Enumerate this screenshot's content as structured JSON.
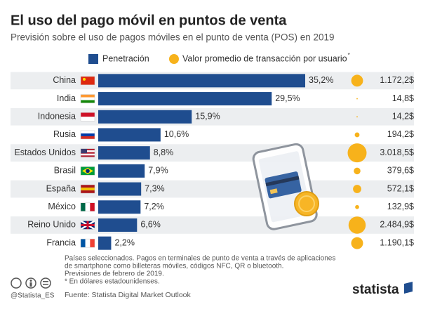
{
  "chart_data": {
    "type": "bar",
    "title": "El uso del pago móvil en puntos de venta",
    "subtitle": "Previsión sobre el uso de pagos móviles en el punto de venta (POS) en 2019",
    "categories": [
      "China",
      "India",
      "Indonesia",
      "Rusia",
      "Estados Unidos",
      "Brasil",
      "España",
      "México",
      "Reino Unido",
      "Francia"
    ],
    "series": [
      {
        "name": "Penetración",
        "color": "#1f4d8f",
        "type": "bar",
        "values": [
          35.2,
          29.5,
          15.9,
          10.6,
          8.8,
          7.9,
          7.3,
          7.2,
          6.6,
          2.2
        ],
        "value_labels": [
          "35,2%",
          "29,5%",
          "15,9%",
          "10,6%",
          "8,8%",
          "7,9%",
          "7,3%",
          "7,2%",
          "6,6%",
          "2,2%"
        ]
      },
      {
        "name": "Valor promedio de transacción por usuario",
        "name_note": "*",
        "color": "#f7b21b",
        "type": "bubble",
        "values": [
          1172.2,
          14.8,
          14.2,
          194.2,
          3018.5,
          379.6,
          572.1,
          132.9,
          2484.9,
          1190.1
        ],
        "value_labels": [
          "1.172,2$",
          "14,8$",
          "14,2$",
          "194,2$",
          "3.018,5$",
          "379,6$",
          "572,1$",
          "132,9$",
          "2.484,9$",
          "1.190,1$"
        ]
      }
    ],
    "notes": [
      "Países seleccionados. Pagos en terminales de punto de venta a través de aplicaciones",
      "de smartphone como billeteras móviles, códigos NFC, QR o bluetooth.",
      "Previsiones de febrero de 2019.",
      "* En dólares estadounidenses."
    ],
    "source": "Fuente: Statista Digital Market Outlook",
    "handle": "@Statista_ES",
    "logo": "statista"
  }
}
